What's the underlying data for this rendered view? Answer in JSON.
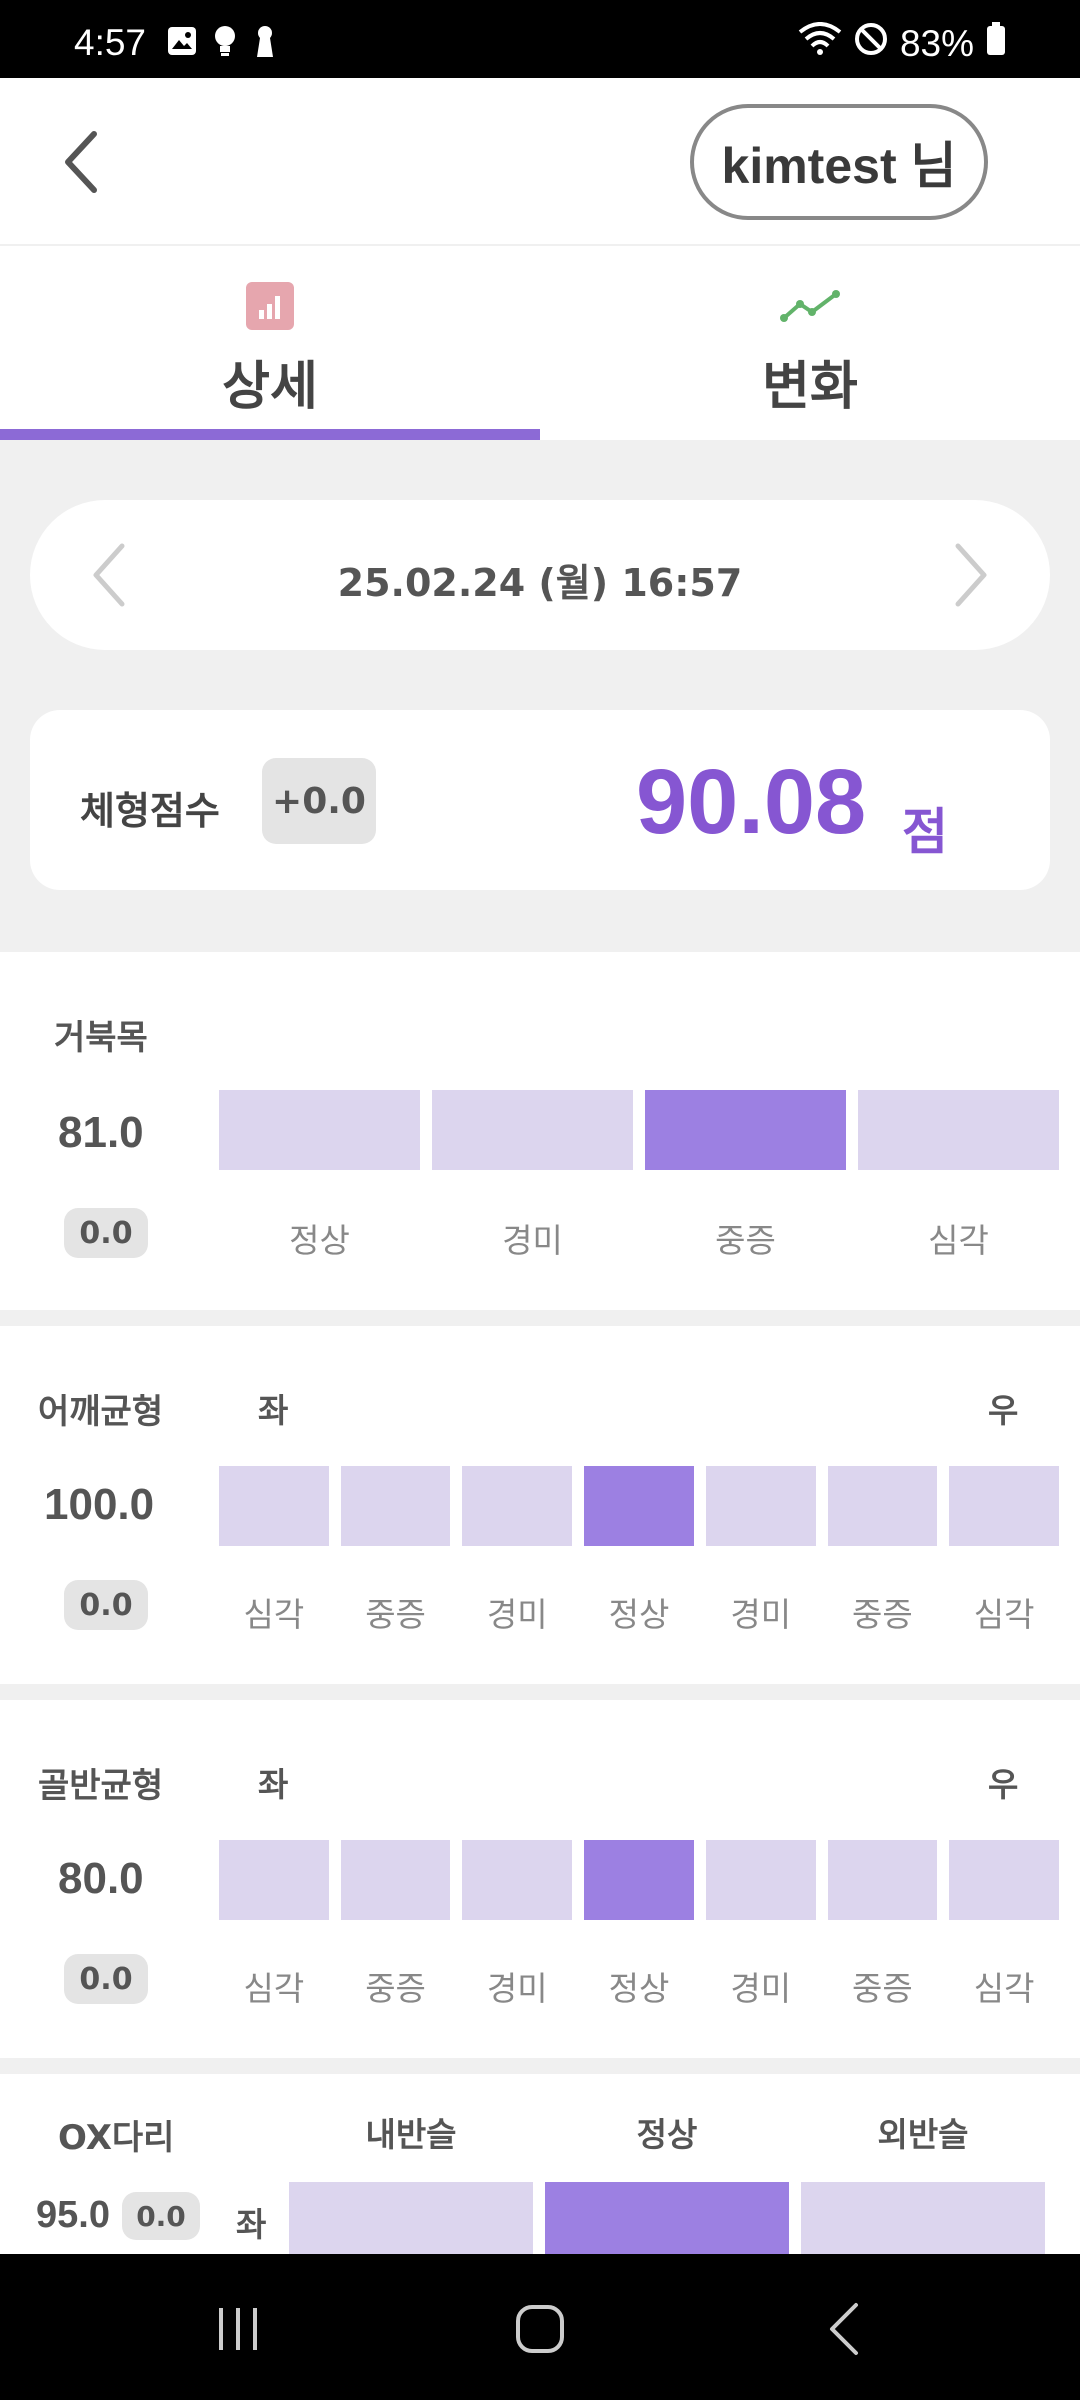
{
  "status_bar": {
    "time": "4:57",
    "battery": "83%"
  },
  "header": {
    "user": "kimtest 님"
  },
  "tabs": [
    {
      "label": "상세",
      "icon": "bar-chart-icon",
      "active": true
    },
    {
      "label": "변화",
      "icon": "line-chart-icon",
      "active": false
    }
  ],
  "date": {
    "text": "25.02.24 (월) 16:57"
  },
  "score": {
    "label": "체형점수",
    "delta": "+0.0",
    "value": "90.08",
    "unit": "점"
  },
  "metrics": {
    "neck": {
      "name": "거북목",
      "value": "81.0",
      "delta": "0.0",
      "segments": [
        "정상",
        "경미",
        "중증",
        "심각"
      ],
      "active_index": 2
    },
    "shoulder": {
      "name": "어깨균형",
      "value": "100.0",
      "delta": "0.0",
      "left": "좌",
      "right": "우",
      "segments": [
        "심각",
        "중증",
        "경미",
        "정상",
        "경미",
        "중증",
        "심각"
      ],
      "active_index": 3
    },
    "pelvis": {
      "name": "골반균형",
      "value": "80.0",
      "delta": "0.0",
      "left": "좌",
      "right": "우",
      "segments": [
        "심각",
        "중증",
        "경미",
        "정상",
        "경미",
        "중증",
        "심각"
      ],
      "active_index": 3
    },
    "legs": {
      "name": "OX다리",
      "value": "95.0",
      "delta": "0.0",
      "row_label": "좌",
      "segments": [
        "내반슬",
        "정상",
        "외반슬"
      ],
      "active_index": 1
    }
  },
  "colors": {
    "accent": "#8656d2",
    "segment_active": "#9c80e2",
    "segment_inactive": "#dcd5ee"
  }
}
